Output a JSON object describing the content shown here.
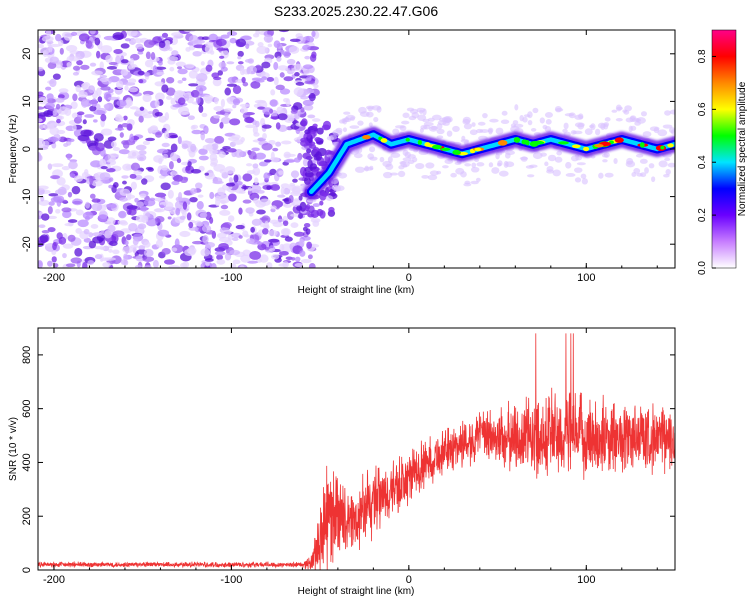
{
  "title": "S233.2025.230.22.47.G06",
  "chart_data": [
    {
      "type": "heatmap",
      "xlabel": "Height of straight line (km)",
      "ylabel": "Frequency (Hz)",
      "xlim": [
        -209,
        150
      ],
      "ylim": [
        -25,
        25
      ],
      "x_ticks": [
        -200,
        -100,
        0,
        100
      ],
      "y_ticks": [
        -20,
        -10,
        0,
        10,
        20
      ],
      "noise_region_x": [
        -209,
        -60
      ],
      "transition_x": [
        -60,
        -40
      ],
      "ridge": {
        "description": "strong signal ridge near 0 Hz",
        "x": [
          -55,
          -45,
          -35,
          -20,
          -10,
          0,
          10,
          20,
          30,
          40,
          50,
          60,
          70,
          80,
          90,
          100,
          110,
          120,
          130,
          140,
          150
        ],
        "freq": [
          -9,
          -5,
          1,
          3,
          1,
          2,
          1,
          0,
          -1,
          0,
          1,
          2,
          1,
          2,
          1,
          0,
          1,
          2,
          1,
          0,
          1
        ]
      },
      "colorbar": {
        "label": "Normalized spectral amplitude",
        "range": [
          0.0,
          0.9
        ],
        "ticks": [
          "0.0",
          "0.2",
          "0.4",
          "0.6",
          "0.8"
        ],
        "colors": [
          "#ffffff",
          "#c77dff",
          "#6a00ff",
          "#0000ff",
          "#00e5ff",
          "#00ff00",
          "#ffff00",
          "#ff8800",
          "#ff0000",
          "#ff0088"
        ]
      }
    },
    {
      "type": "line",
      "xlabel": "Height of straight line (km)",
      "ylabel": "SNR (10 * v/v)",
      "xlim": [
        -209,
        150
      ],
      "ylim": [
        0,
        900
      ],
      "x_ticks": [
        -200,
        -100,
        0,
        100
      ],
      "y_ticks": [
        0,
        200,
        400,
        600,
        800
      ],
      "series": [
        {
          "name": "SNR",
          "color": "#ee3333",
          "x": [
            -209,
            -150,
            -100,
            -60,
            -55,
            -50,
            -45,
            -40,
            -35,
            -30,
            -25,
            -20,
            -10,
            0,
            10,
            20,
            30,
            40,
            50,
            60,
            70,
            80,
            90,
            100,
            110,
            120,
            130,
            140,
            150
          ],
          "y_mean": [
            20,
            20,
            20,
            20,
            25,
            120,
            200,
            230,
            170,
            180,
            220,
            250,
            290,
            340,
            400,
            440,
            470,
            500,
            490,
            490,
            500,
            510,
            500,
            500,
            490,
            490,
            500,
            490,
            480
          ],
          "y_spread": [
            10,
            10,
            10,
            10,
            30,
            150,
            200,
            150,
            110,
            120,
            130,
            130,
            110,
            100,
            90,
            80,
            90,
            90,
            110,
            130,
            150,
            170,
            160,
            150,
            140,
            130,
            130,
            120,
            120
          ],
          "peak_max": 880
        }
      ]
    }
  ]
}
